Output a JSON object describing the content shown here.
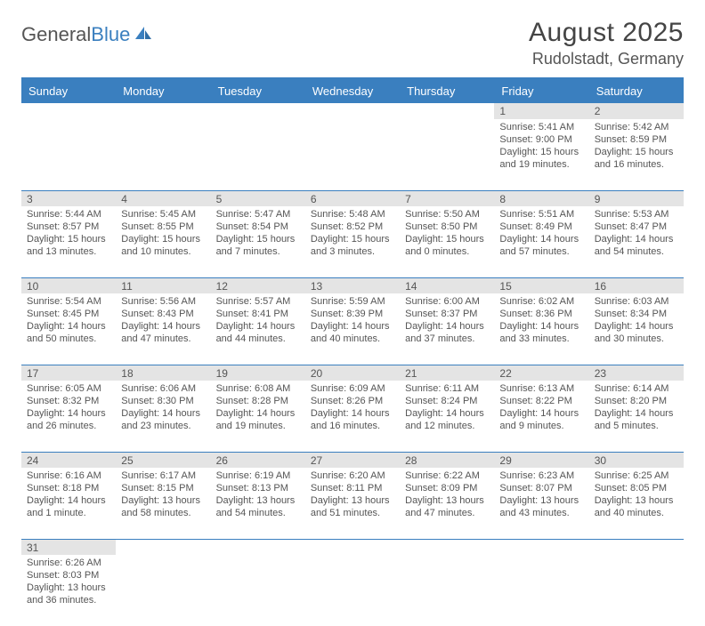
{
  "brand": {
    "part1": "General",
    "part2": "Blue"
  },
  "title": {
    "month": "August 2025",
    "location": "Rudolstadt, Germany"
  },
  "colors": {
    "accent": "#3a7fbf",
    "text": "#4a4a4a",
    "daybg": "#e4e4e4"
  },
  "weekdays": [
    "Sunday",
    "Monday",
    "Tuesday",
    "Wednesday",
    "Thursday",
    "Friday",
    "Saturday"
  ],
  "weeks": [
    [
      null,
      null,
      null,
      null,
      null,
      {
        "n": "1",
        "sr": "Sunrise: 5:41 AM",
        "ss": "Sunset: 9:00 PM",
        "dl": "Daylight: 15 hours and 19 minutes."
      },
      {
        "n": "2",
        "sr": "Sunrise: 5:42 AM",
        "ss": "Sunset: 8:59 PM",
        "dl": "Daylight: 15 hours and 16 minutes."
      }
    ],
    [
      {
        "n": "3",
        "sr": "Sunrise: 5:44 AM",
        "ss": "Sunset: 8:57 PM",
        "dl": "Daylight: 15 hours and 13 minutes."
      },
      {
        "n": "4",
        "sr": "Sunrise: 5:45 AM",
        "ss": "Sunset: 8:55 PM",
        "dl": "Daylight: 15 hours and 10 minutes."
      },
      {
        "n": "5",
        "sr": "Sunrise: 5:47 AM",
        "ss": "Sunset: 8:54 PM",
        "dl": "Daylight: 15 hours and 7 minutes."
      },
      {
        "n": "6",
        "sr": "Sunrise: 5:48 AM",
        "ss": "Sunset: 8:52 PM",
        "dl": "Daylight: 15 hours and 3 minutes."
      },
      {
        "n": "7",
        "sr": "Sunrise: 5:50 AM",
        "ss": "Sunset: 8:50 PM",
        "dl": "Daylight: 15 hours and 0 minutes."
      },
      {
        "n": "8",
        "sr": "Sunrise: 5:51 AM",
        "ss": "Sunset: 8:49 PM",
        "dl": "Daylight: 14 hours and 57 minutes."
      },
      {
        "n": "9",
        "sr": "Sunrise: 5:53 AM",
        "ss": "Sunset: 8:47 PM",
        "dl": "Daylight: 14 hours and 54 minutes."
      }
    ],
    [
      {
        "n": "10",
        "sr": "Sunrise: 5:54 AM",
        "ss": "Sunset: 8:45 PM",
        "dl": "Daylight: 14 hours and 50 minutes."
      },
      {
        "n": "11",
        "sr": "Sunrise: 5:56 AM",
        "ss": "Sunset: 8:43 PM",
        "dl": "Daylight: 14 hours and 47 minutes."
      },
      {
        "n": "12",
        "sr": "Sunrise: 5:57 AM",
        "ss": "Sunset: 8:41 PM",
        "dl": "Daylight: 14 hours and 44 minutes."
      },
      {
        "n": "13",
        "sr": "Sunrise: 5:59 AM",
        "ss": "Sunset: 8:39 PM",
        "dl": "Daylight: 14 hours and 40 minutes."
      },
      {
        "n": "14",
        "sr": "Sunrise: 6:00 AM",
        "ss": "Sunset: 8:37 PM",
        "dl": "Daylight: 14 hours and 37 minutes."
      },
      {
        "n": "15",
        "sr": "Sunrise: 6:02 AM",
        "ss": "Sunset: 8:36 PM",
        "dl": "Daylight: 14 hours and 33 minutes."
      },
      {
        "n": "16",
        "sr": "Sunrise: 6:03 AM",
        "ss": "Sunset: 8:34 PM",
        "dl": "Daylight: 14 hours and 30 minutes."
      }
    ],
    [
      {
        "n": "17",
        "sr": "Sunrise: 6:05 AM",
        "ss": "Sunset: 8:32 PM",
        "dl": "Daylight: 14 hours and 26 minutes."
      },
      {
        "n": "18",
        "sr": "Sunrise: 6:06 AM",
        "ss": "Sunset: 8:30 PM",
        "dl": "Daylight: 14 hours and 23 minutes."
      },
      {
        "n": "19",
        "sr": "Sunrise: 6:08 AM",
        "ss": "Sunset: 8:28 PM",
        "dl": "Daylight: 14 hours and 19 minutes."
      },
      {
        "n": "20",
        "sr": "Sunrise: 6:09 AM",
        "ss": "Sunset: 8:26 PM",
        "dl": "Daylight: 14 hours and 16 minutes."
      },
      {
        "n": "21",
        "sr": "Sunrise: 6:11 AM",
        "ss": "Sunset: 8:24 PM",
        "dl": "Daylight: 14 hours and 12 minutes."
      },
      {
        "n": "22",
        "sr": "Sunrise: 6:13 AM",
        "ss": "Sunset: 8:22 PM",
        "dl": "Daylight: 14 hours and 9 minutes."
      },
      {
        "n": "23",
        "sr": "Sunrise: 6:14 AM",
        "ss": "Sunset: 8:20 PM",
        "dl": "Daylight: 14 hours and 5 minutes."
      }
    ],
    [
      {
        "n": "24",
        "sr": "Sunrise: 6:16 AM",
        "ss": "Sunset: 8:18 PM",
        "dl": "Daylight: 14 hours and 1 minute."
      },
      {
        "n": "25",
        "sr": "Sunrise: 6:17 AM",
        "ss": "Sunset: 8:15 PM",
        "dl": "Daylight: 13 hours and 58 minutes."
      },
      {
        "n": "26",
        "sr": "Sunrise: 6:19 AM",
        "ss": "Sunset: 8:13 PM",
        "dl": "Daylight: 13 hours and 54 minutes."
      },
      {
        "n": "27",
        "sr": "Sunrise: 6:20 AM",
        "ss": "Sunset: 8:11 PM",
        "dl": "Daylight: 13 hours and 51 minutes."
      },
      {
        "n": "28",
        "sr": "Sunrise: 6:22 AM",
        "ss": "Sunset: 8:09 PM",
        "dl": "Daylight: 13 hours and 47 minutes."
      },
      {
        "n": "29",
        "sr": "Sunrise: 6:23 AM",
        "ss": "Sunset: 8:07 PM",
        "dl": "Daylight: 13 hours and 43 minutes."
      },
      {
        "n": "30",
        "sr": "Sunrise: 6:25 AM",
        "ss": "Sunset: 8:05 PM",
        "dl": "Daylight: 13 hours and 40 minutes."
      }
    ],
    [
      {
        "n": "31",
        "sr": "Sunrise: 6:26 AM",
        "ss": "Sunset: 8:03 PM",
        "dl": "Daylight: 13 hours and 36 minutes."
      },
      null,
      null,
      null,
      null,
      null,
      null
    ]
  ]
}
